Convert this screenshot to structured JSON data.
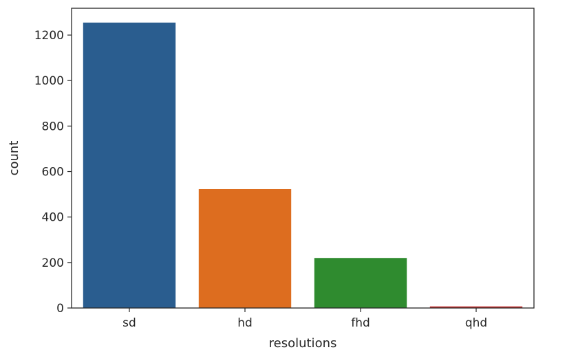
{
  "chart_data": {
    "type": "bar",
    "categories": [
      "sd",
      "hd",
      "fhd",
      "qhd"
    ],
    "values": [
      1255,
      523,
      220,
      7
    ],
    "xlabel": "resolutions",
    "ylabel": "count",
    "ylim": [
      0,
      1318
    ],
    "yticks": [
      0,
      200,
      400,
      600,
      800,
      1000,
      1200
    ],
    "grid": false,
    "colors": [
      "#2a5d8f",
      "#dd6d1f",
      "#2f8b2f",
      "#c23533"
    ]
  }
}
